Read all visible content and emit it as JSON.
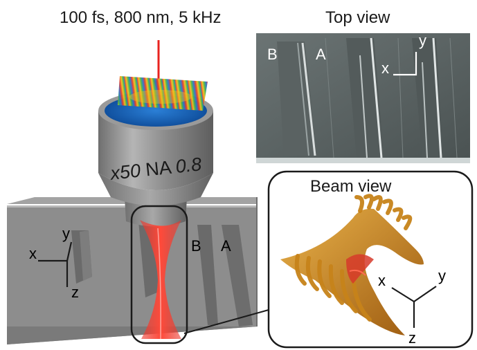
{
  "laser_params": "100 fs, 800 nm, 5 kHz",
  "objective": {
    "magnification": "x50",
    "na": "NA",
    "na_value": "0.8"
  },
  "top_view": {
    "title": "Top view",
    "label_b": "B",
    "label_a": "A",
    "axis_x": "x",
    "axis_y": "y"
  },
  "beam_view": {
    "title": "Beam view",
    "axis_x": "x",
    "axis_y": "y",
    "axis_z": "z"
  },
  "sample": {
    "axis_x": "x",
    "axis_y": "y",
    "axis_z": "z",
    "label_b": "B",
    "label_a": "A"
  },
  "colors": {
    "arrow": "#e8231f",
    "objective_body": "#8f8f8f",
    "objective_lens": "#1e68c4",
    "sample_block": "#8c8c8c",
    "beam": "#e5362a",
    "beam_volume": "#c9841a"
  }
}
